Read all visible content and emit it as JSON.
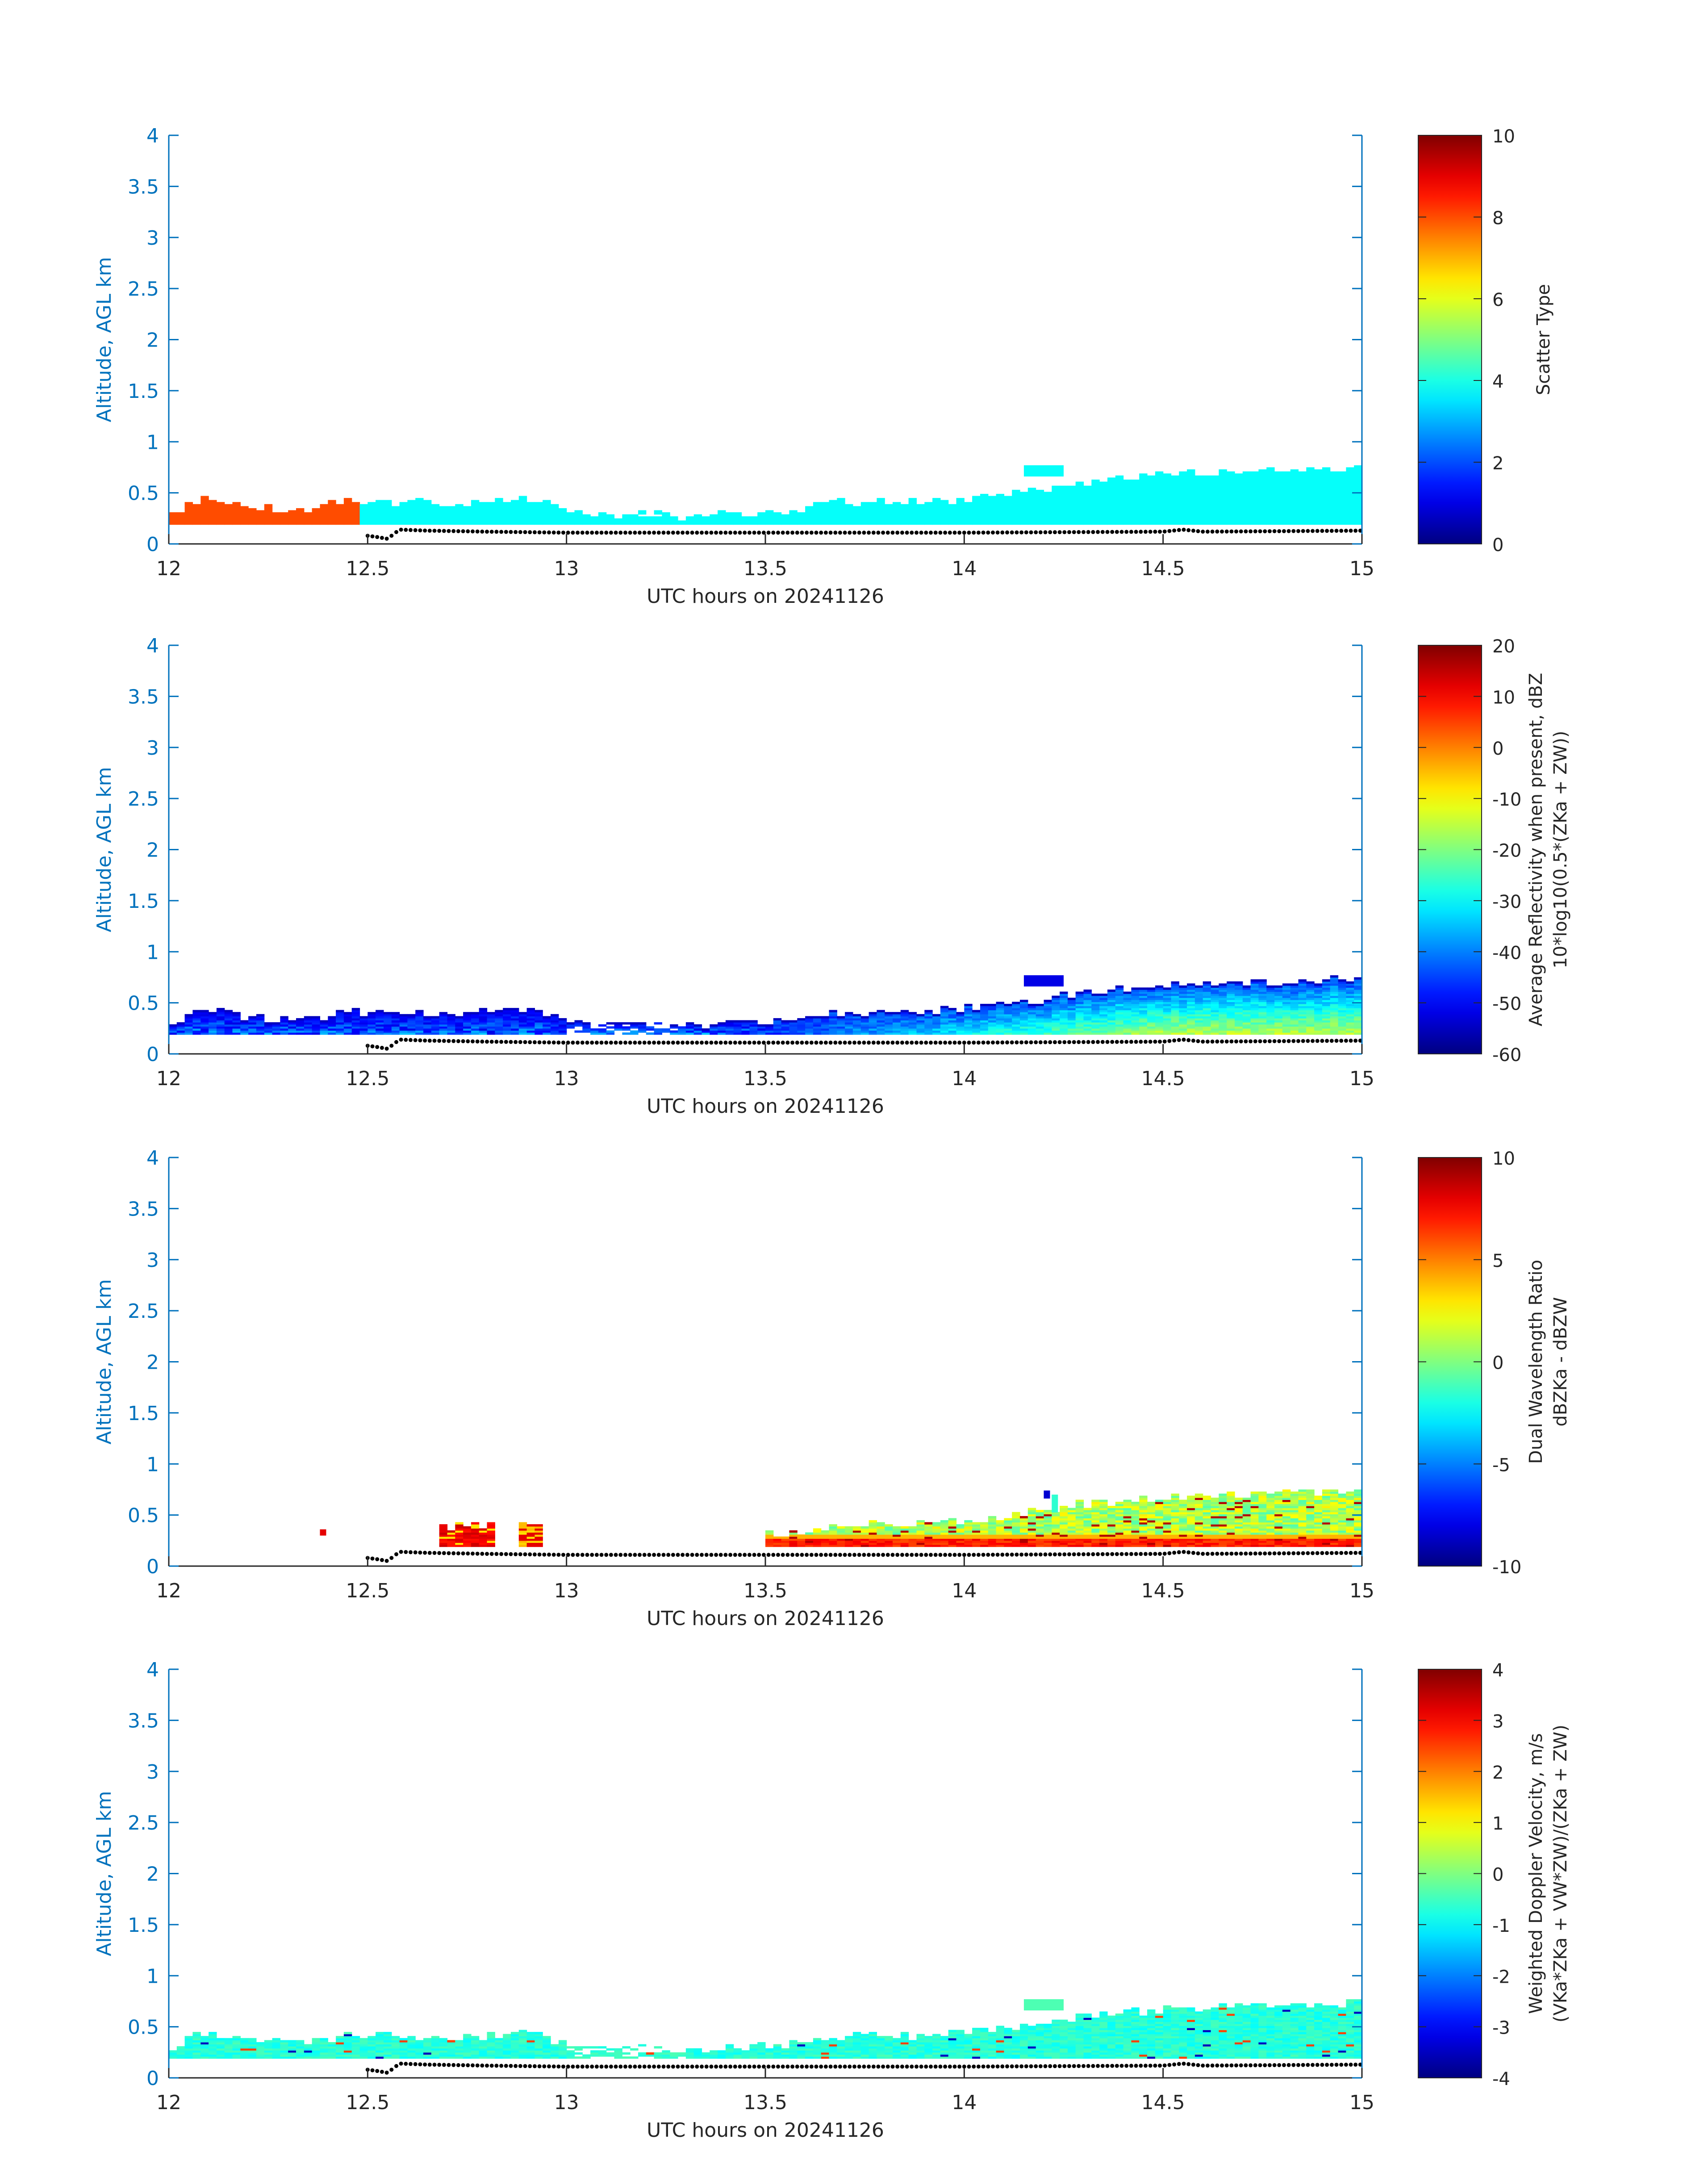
{
  "chart_data": [
    {
      "type": "heatmap",
      "title": "",
      "xlabel": "UTC hours on 20241126",
      "ylabel": "Altitude, AGL km",
      "xlim": [
        12,
        15
      ],
      "ylim": [
        0,
        4
      ],
      "x_ticks": [
        "12",
        "12.5",
        "13",
        "13.5",
        "14",
        "14.5",
        "15"
      ],
      "y_ticks": [
        "0",
        "0.5",
        "1",
        "1.5",
        "2",
        "2.5",
        "3",
        "3.5",
        "4"
      ],
      "colorbar": {
        "label": "Scatter Type",
        "label2": "",
        "range": [
          0,
          10
        ],
        "ticks": [
          "0",
          "2",
          "4",
          "6",
          "8",
          "10"
        ]
      },
      "field": "scatter_type",
      "dominant_values": [
        {
          "from_hour": 12.0,
          "to_hour": 12.48,
          "value": 8
        },
        {
          "from_hour": 12.48,
          "to_hour": 15.0,
          "value": 3.8
        }
      ]
    },
    {
      "type": "heatmap",
      "title": "",
      "xlabel": "UTC hours on 20241126",
      "ylabel": "Altitude, AGL km",
      "xlim": [
        12,
        15
      ],
      "ylim": [
        0,
        4
      ],
      "x_ticks": [
        "12",
        "12.5",
        "13",
        "13.5",
        "14",
        "14.5",
        "15"
      ],
      "y_ticks": [
        "0",
        "0.5",
        "1",
        "1.5",
        "2",
        "2.5",
        "3",
        "3.5",
        "4"
      ],
      "colorbar": {
        "label": "Average Reflectivity when present, dBZ",
        "label2": "10*log10(0.5*(ZKa + ZW))",
        "range": [
          -60,
          20
        ],
        "ticks": [
          "-60",
          "-50",
          "-40",
          "-30",
          "-20",
          "-10",
          "0",
          "10",
          "20"
        ]
      },
      "field": "reflectivity_dBZ",
      "typical_range": [
        -55,
        -20
      ]
    },
    {
      "type": "heatmap",
      "title": "",
      "xlabel": "UTC hours on 20241126",
      "ylabel": "Altitude, AGL km",
      "xlim": [
        12,
        15
      ],
      "ylim": [
        0,
        4
      ],
      "x_ticks": [
        "12",
        "12.5",
        "13",
        "13.5",
        "14",
        "14.5",
        "15"
      ],
      "y_ticks": [
        "0",
        "0.5",
        "1",
        "1.5",
        "2",
        "2.5",
        "3",
        "3.5",
        "4"
      ],
      "colorbar": {
        "label": "Dual Wavelength Ratio",
        "label2": "dBZKa - dBZW",
        "range": [
          -10,
          10
        ],
        "ticks": [
          "-10",
          "-5",
          "0",
          "5",
          "10"
        ]
      },
      "field": "dual_wavelength_ratio",
      "typical_range": [
        -3,
        10
      ]
    },
    {
      "type": "heatmap",
      "title": "",
      "xlabel": "UTC hours on 20241126",
      "ylabel": "Altitude, AGL km",
      "xlim": [
        12,
        15
      ],
      "ylim": [
        0,
        4
      ],
      "x_ticks": [
        "12",
        "12.5",
        "13",
        "13.5",
        "14",
        "14.5",
        "15"
      ],
      "y_ticks": [
        "0",
        "0.5",
        "1",
        "1.5",
        "2",
        "2.5",
        "3",
        "3.5",
        "4"
      ],
      "colorbar": {
        "label": "Weighted Doppler Velocity, m/s",
        "label2": "(VKa*ZKa + VW*ZW)/(ZKa + ZW)",
        "range": [
          -4,
          4
        ],
        "ticks": [
          "-4",
          "-3",
          "-2",
          "-1",
          "0",
          "1",
          "2",
          "3",
          "4"
        ]
      },
      "field": "doppler_velocity_ms",
      "typical_range": [
        -1.5,
        0
      ]
    }
  ],
  "echo_top_km": [
    {
      "t": 12.0,
      "top": 0.28
    },
    {
      "t": 12.05,
      "top": 0.4
    },
    {
      "t": 12.1,
      "top": 0.45
    },
    {
      "t": 12.2,
      "top": 0.38
    },
    {
      "t": 12.3,
      "top": 0.35
    },
    {
      "t": 12.4,
      "top": 0.38
    },
    {
      "t": 12.45,
      "top": 0.45
    },
    {
      "t": 12.5,
      "top": 0.42
    },
    {
      "t": 12.6,
      "top": 0.42
    },
    {
      "t": 12.7,
      "top": 0.4
    },
    {
      "t": 12.8,
      "top": 0.42
    },
    {
      "t": 12.9,
      "top": 0.46
    },
    {
      "t": 13.0,
      "top": 0.33
    },
    {
      "t": 13.1,
      "top": 0.3
    },
    {
      "t": 13.2,
      "top": 0.31
    },
    {
      "t": 13.3,
      "top": 0.28
    },
    {
      "t": 13.4,
      "top": 0.3
    },
    {
      "t": 13.5,
      "top": 0.32
    },
    {
      "t": 13.6,
      "top": 0.35
    },
    {
      "t": 13.7,
      "top": 0.42
    },
    {
      "t": 13.8,
      "top": 0.42
    },
    {
      "t": 13.9,
      "top": 0.42
    },
    {
      "t": 14.0,
      "top": 0.45
    },
    {
      "t": 14.1,
      "top": 0.5
    },
    {
      "t": 14.2,
      "top": 0.55
    },
    {
      "t": 14.3,
      "top": 0.62
    },
    {
      "t": 14.4,
      "top": 0.65
    },
    {
      "t": 14.5,
      "top": 0.68
    },
    {
      "t": 14.6,
      "top": 0.7
    },
    {
      "t": 14.7,
      "top": 0.72
    },
    {
      "t": 14.8,
      "top": 0.72
    },
    {
      "t": 14.9,
      "top": 0.74
    },
    {
      "t": 15.0,
      "top": 0.75
    }
  ],
  "echo_base_km": 0.19,
  "isolated_patch": {
    "from": 14.15,
    "to": 14.25,
    "bottom": 0.66,
    "top": 0.77
  },
  "ground_line": [
    {
      "t": 12.5,
      "alt": 0.08
    },
    {
      "t": 12.52,
      "alt": 0.07
    },
    {
      "t": 12.55,
      "alt": 0.05
    },
    {
      "t": 12.58,
      "alt": 0.14
    },
    {
      "t": 12.65,
      "alt": 0.13
    },
    {
      "t": 12.8,
      "alt": 0.12
    },
    {
      "t": 13.0,
      "alt": 0.11
    },
    {
      "t": 13.5,
      "alt": 0.11
    },
    {
      "t": 14.0,
      "alt": 0.11
    },
    {
      "t": 14.5,
      "alt": 0.12
    },
    {
      "t": 14.55,
      "alt": 0.14
    },
    {
      "t": 14.6,
      "alt": 0.12
    },
    {
      "t": 15.0,
      "alt": 0.13
    }
  ]
}
